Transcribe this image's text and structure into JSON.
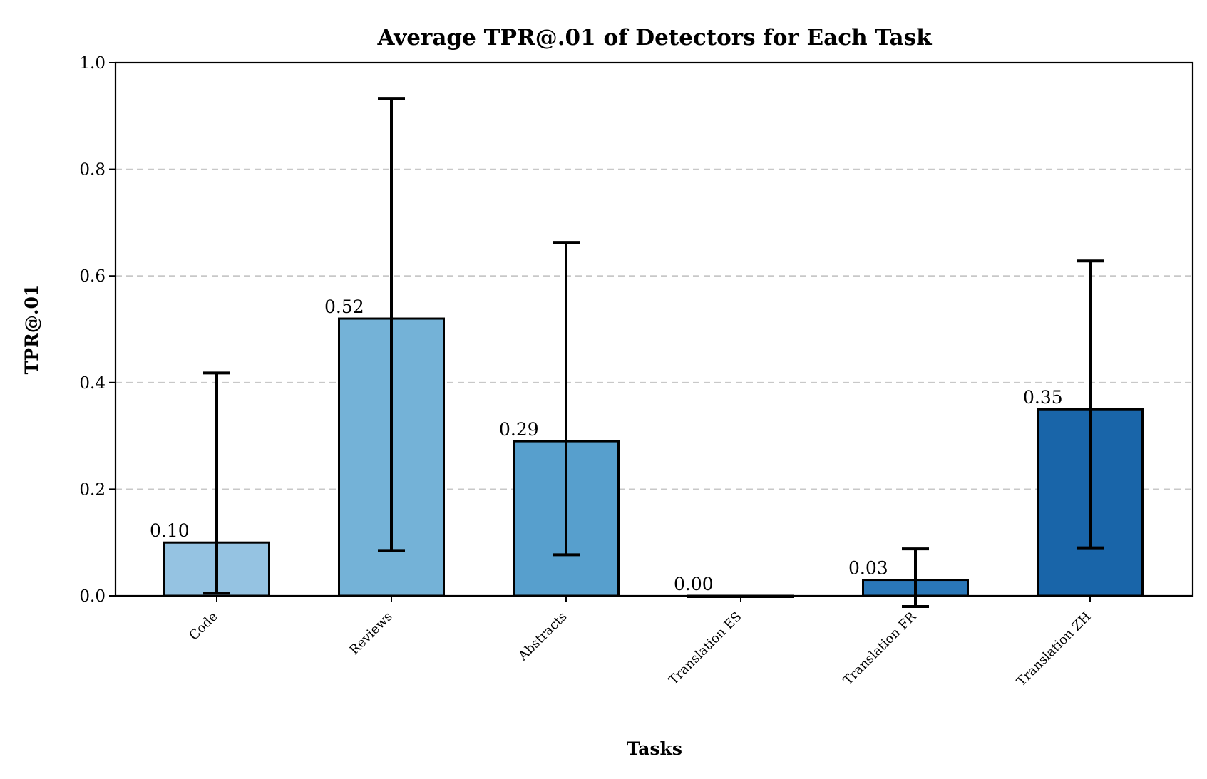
{
  "chart_data": {
    "type": "bar",
    "title": "Average TPR@.01 of Detectors for Each Task",
    "xlabel": "Tasks",
    "ylabel": "TPR@.01",
    "ylim": [
      0,
      1.0
    ],
    "yticks": [
      "0.0",
      "0.2",
      "0.4",
      "0.6",
      "0.8",
      "1.0"
    ],
    "grid": "horizontal dashed",
    "categories": [
      "Code",
      "Reviews",
      "Abstracts",
      "Translation ES",
      "Translation FR",
      "Translation ZH"
    ],
    "values": [
      0.1,
      0.52,
      0.29,
      0.0,
      0.03,
      0.35
    ],
    "value_labels": [
      "0.10",
      "0.52",
      "0.29",
      "0.00",
      "0.03",
      "0.35"
    ],
    "error_low": [
      0.005,
      0.085,
      0.077,
      0.0,
      -0.02,
      0.09
    ],
    "error_high": [
      0.418,
      0.933,
      0.663,
      0.0,
      0.088,
      0.628
    ],
    "colors": [
      "#95c3e2",
      "#74b2d7",
      "#579fcd",
      "#3c87c1",
      "#2a77b8",
      "#1965a9"
    ]
  }
}
